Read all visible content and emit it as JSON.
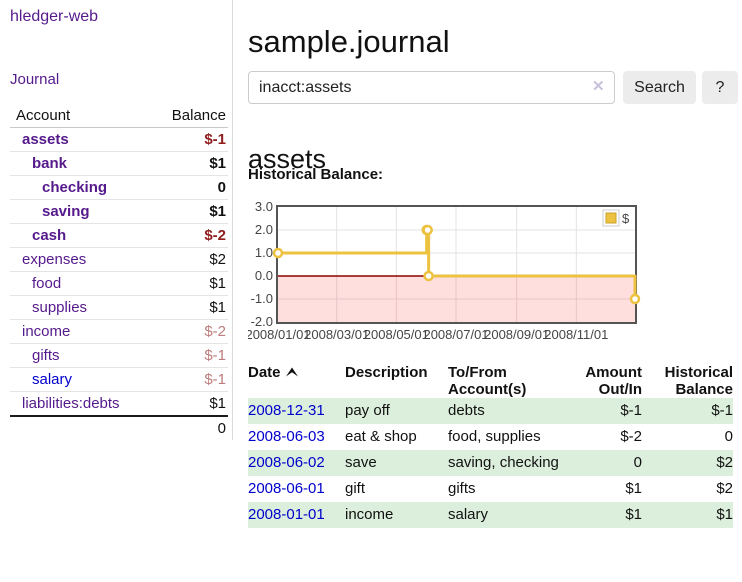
{
  "brand": "hledger-web",
  "colors": {
    "link_purple": "#551a8b",
    "link_blue": "#0000cc",
    "negative_strong": "#8f1d1d",
    "negative_soft": "#bb7d7d",
    "row_green": "#dcefdc",
    "chart_line_gold": "#edc240",
    "chart_zero_line": "#8b0000"
  },
  "sidebar": {
    "journal_link": "Journal",
    "accounts": {
      "header": {
        "account": "Account",
        "balance": "Balance"
      },
      "rows": [
        {
          "name": "assets",
          "level": 1,
          "bold": true,
          "balance": "$-1",
          "balance_style": "neg-bold"
        },
        {
          "name": "bank",
          "level": 2,
          "bold": true,
          "balance": "$1",
          "balance_style": "bold"
        },
        {
          "name": "checking",
          "level": 3,
          "bold": true,
          "balance": "0",
          "balance_style": "bold"
        },
        {
          "name": "saving",
          "level": 3,
          "bold": true,
          "balance": "$1",
          "balance_style": "bold"
        },
        {
          "name": "cash",
          "level": 2,
          "bold": true,
          "balance": "$-2",
          "balance_style": "neg-bold"
        },
        {
          "name": "expenses",
          "level": 1,
          "bold": false,
          "balance": "$2",
          "balance_style": "plain"
        },
        {
          "name": "food",
          "level": 2,
          "bold": false,
          "balance": "$1",
          "balance_style": "plain"
        },
        {
          "name": "supplies",
          "level": 2,
          "bold": false,
          "balance": "$1",
          "balance_style": "plain"
        },
        {
          "name": "income",
          "level": 1,
          "bold": false,
          "balance": "$-2",
          "balance_style": "neg-soft"
        },
        {
          "name": "gifts",
          "level": 2,
          "bold": false,
          "balance": "$-1",
          "balance_style": "neg-soft"
        },
        {
          "name": "salary",
          "level": 2,
          "bold": false,
          "balance": "$-1",
          "balance_style": "neg-soft",
          "link_color": "blue"
        },
        {
          "name": "liabilities:debts",
          "level": 1,
          "bold": false,
          "balance": "$1",
          "balance_style": "plain",
          "last": true
        }
      ],
      "total": "0"
    }
  },
  "header": {
    "title": "sample.journal"
  },
  "search": {
    "value": "inacct:assets",
    "clear_icon": "✕",
    "search_label": "Search",
    "help_label": "?"
  },
  "account_page": {
    "heading": "assets",
    "chart_title": "Historical Balance:"
  },
  "register": {
    "headers": {
      "date": "Date",
      "sort_icon": "caret-up",
      "description": "Description",
      "account": "To/From Account(s)",
      "amount": "Amount Out/In",
      "balance": "Historical Balance"
    },
    "rows": [
      {
        "date": "2008-12-31",
        "description": "pay off",
        "accounts": "debts",
        "amount": "$-1",
        "amount_neg": true,
        "balance": "$-1",
        "balance_neg": true,
        "shade": true
      },
      {
        "date": "2008-06-03",
        "description": "eat & shop",
        "accounts": "food, supplies",
        "amount": "$-2",
        "amount_neg": true,
        "balance": "0",
        "balance_neg": false,
        "shade": false
      },
      {
        "date": "2008-06-02",
        "description": "save",
        "accounts": "saving, checking",
        "amount": "0",
        "amount_neg": false,
        "balance": "$2",
        "balance_neg": false,
        "shade": true
      },
      {
        "date": "2008-06-01",
        "description": "gift",
        "accounts": "gifts",
        "amount": "$1",
        "amount_neg": false,
        "balance": "$2",
        "balance_neg": false,
        "shade": false
      },
      {
        "date": "2008-01-01",
        "description": "income",
        "accounts": "salary",
        "amount": "$1",
        "amount_neg": false,
        "balance": "$1",
        "balance_neg": false,
        "shade": true
      }
    ]
  },
  "chart_data": {
    "type": "line",
    "title": "Historical Balance:",
    "x_range": [
      "2008-01-01",
      "2008-12-31"
    ],
    "y_range": [
      -2,
      3
    ],
    "x_ticks": [
      {
        "date": "2008-01-01",
        "label": "2008/01/01"
      },
      {
        "date": "2008-03-01",
        "label": "2008/03/01"
      },
      {
        "date": "2008-05-01",
        "label": "2008/05/01"
      },
      {
        "date": "2008-07-01",
        "label": "2008/07/01"
      },
      {
        "date": "2008-09-01",
        "label": "2008/09/01"
      },
      {
        "date": "2008-11-01",
        "label": "2008/11/01"
      }
    ],
    "y_ticks": [
      {
        "value": 3,
        "label": "3.0"
      },
      {
        "value": 2,
        "label": "2.0"
      },
      {
        "value": 1,
        "label": "1.0"
      },
      {
        "value": 0,
        "label": "0.0"
      },
      {
        "value": -1,
        "label": "-1.0"
      },
      {
        "value": -2,
        "label": "-2.0"
      }
    ],
    "series": [
      {
        "name": "$",
        "color": "#edc240",
        "steps": true,
        "points": [
          {
            "date": "2008-01-01",
            "value": 1
          },
          {
            "date": "2008-06-01",
            "value": 2
          },
          {
            "date": "2008-06-02",
            "value": 2
          },
          {
            "date": "2008-06-03",
            "value": 0
          },
          {
            "date": "2008-12-31",
            "value": -1
          }
        ]
      }
    ],
    "legend": {
      "label": "$",
      "position": "top-right"
    },
    "negative_fill": "rgba(255,0,0,0.13)",
    "zero_line_color": "#8b0000",
    "grid": true
  }
}
